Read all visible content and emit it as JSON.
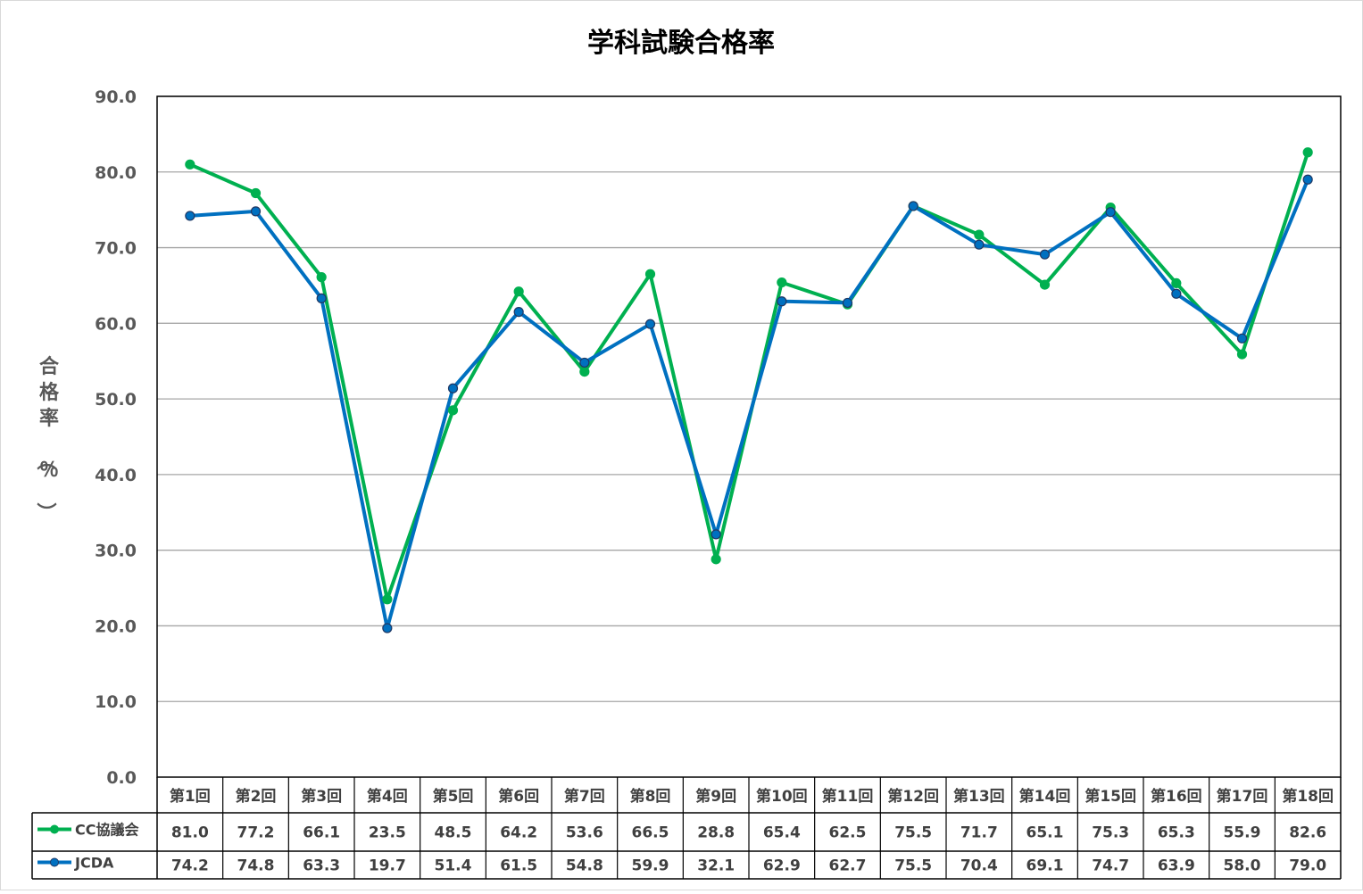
{
  "chart_data": {
    "type": "line",
    "title": "学科試験合格率",
    "ylabel": "合格率（％）",
    "ylim": [
      0,
      90
    ],
    "yticks": [
      "0.0",
      "10.0",
      "20.0",
      "30.0",
      "40.0",
      "50.0",
      "60.0",
      "70.0",
      "80.0",
      "90.0"
    ],
    "grid": true,
    "legend": "data-table",
    "categories": [
      "第1回",
      "第2回",
      "第3回",
      "第4回",
      "第5回",
      "第6回",
      "第7回",
      "第8回",
      "第9回",
      "第10回",
      "第11回",
      "第12回",
      "第13回",
      "第14回",
      "第15回",
      "第16回",
      "第17回",
      "第18回"
    ],
    "series": [
      {
        "name": "CC協議会",
        "color": "#00b050",
        "values": [
          81.0,
          77.2,
          66.1,
          23.5,
          48.5,
          64.2,
          53.6,
          66.5,
          28.8,
          65.4,
          62.5,
          75.5,
          71.7,
          65.1,
          75.3,
          65.3,
          55.9,
          82.6
        ],
        "labels": [
          "81.0",
          "77.2",
          "66.1",
          "23.5",
          "48.5",
          "64.2",
          "53.6",
          "66.5",
          "28.8",
          "65.4",
          "62.5",
          "75.5",
          "71.7",
          "65.1",
          "75.3",
          "65.3",
          "55.9",
          "82.6"
        ]
      },
      {
        "name": "JCDA",
        "color": "#0070c0",
        "values": [
          74.2,
          74.8,
          63.3,
          19.7,
          51.4,
          61.5,
          54.8,
          59.9,
          32.1,
          62.9,
          62.7,
          75.5,
          70.4,
          69.1,
          74.7,
          63.9,
          58.0,
          79.0
        ],
        "labels": [
          "74.2",
          "74.8",
          "63.3",
          "19.7",
          "51.4",
          "61.5",
          "54.8",
          "59.9",
          "32.1",
          "62.9",
          "62.7",
          "75.5",
          "70.4",
          "69.1",
          "74.7",
          "63.9",
          "58.0",
          "79.0"
        ]
      }
    ]
  }
}
